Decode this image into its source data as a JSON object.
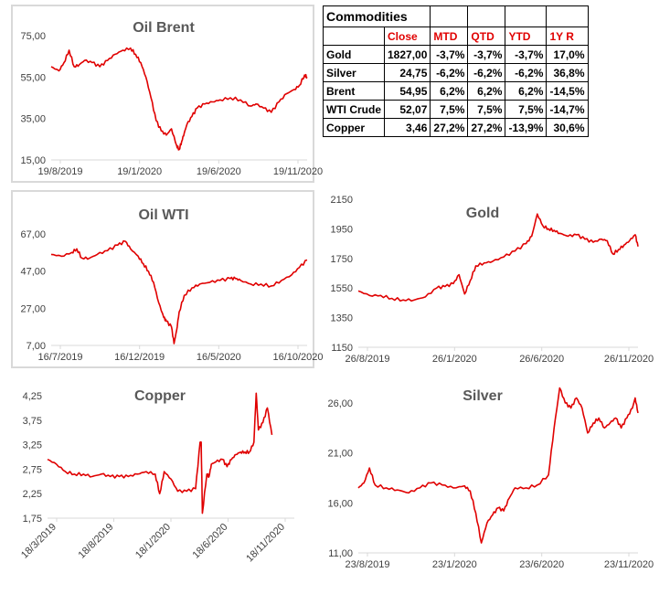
{
  "table": {
    "title": "Commodities",
    "columns": [
      "",
      "Close",
      "MTD",
      "QTD",
      "YTD",
      "1Y R"
    ],
    "rows": [
      [
        "Gold",
        "1827,00",
        "-3,7%",
        "-3,7%",
        "-3,7%",
        "17,0%"
      ],
      [
        "Silver",
        "24,75",
        "-6,2%",
        "-6,2%",
        "-6,2%",
        "36,8%"
      ],
      [
        "Brent",
        "54,95",
        "6,2%",
        "6,2%",
        "6,2%",
        "-14,5%"
      ],
      [
        "WTI Crude",
        "52,07",
        "7,5%",
        "7,5%",
        "7,5%",
        "-14,7%"
      ],
      [
        "Copper",
        "3,46",
        "27,2%",
        "27,2%",
        "-13,9%",
        "30,6%"
      ]
    ]
  },
  "colors": {
    "series": "#e00000",
    "border": "#d9d9d9",
    "header_text": "#e00000"
  },
  "chart_data": [
    {
      "id": "brent",
      "type": "line",
      "title": "Oil Brent",
      "yticks": [
        "75,00",
        "55,00",
        "35,00",
        "15,00"
      ],
      "ylim": [
        15,
        75
      ],
      "xticks": [
        "19/8/2019",
        "19/1/2020",
        "19/6/2020",
        "19/11/2020"
      ],
      "xlim": [
        0,
        1
      ],
      "x": [
        0,
        0.03,
        0.05,
        0.07,
        0.09,
        0.11,
        0.13,
        0.16,
        0.19,
        0.22,
        0.25,
        0.28,
        0.31,
        0.33,
        0.35,
        0.37,
        0.39,
        0.41,
        0.43,
        0.45,
        0.47,
        0.49,
        0.5,
        0.51,
        0.52,
        0.53,
        0.55,
        0.57,
        0.6,
        0.63,
        0.66,
        0.7,
        0.74,
        0.78,
        0.8,
        0.83,
        0.86,
        0.89,
        0.92,
        0.95,
        0.97,
        0.99,
        1
      ],
      "y": [
        60,
        58,
        62,
        68,
        60,
        61,
        63,
        62,
        60,
        63,
        66,
        68,
        69,
        66,
        62,
        55,
        45,
        34,
        29,
        27,
        30,
        22,
        20,
        24,
        28,
        32,
        36,
        40,
        42,
        43,
        44,
        45,
        44,
        41,
        42,
        40,
        38,
        43,
        47,
        49,
        51,
        56,
        55
      ]
    },
    {
      "id": "wti",
      "type": "line",
      "title": "Oil WTI",
      "yticks": [
        "67,00",
        "47,00",
        "27,00",
        "7,00"
      ],
      "ylim": [
        7,
        67
      ],
      "xticks": [
        "16/7/2019",
        "16/12/2019",
        "16/5/2020",
        "16/10/2020"
      ],
      "xlim": [
        0,
        1
      ],
      "x": [
        0,
        0.04,
        0.08,
        0.1,
        0.12,
        0.15,
        0.18,
        0.22,
        0.26,
        0.29,
        0.31,
        0.34,
        0.36,
        0.38,
        0.4,
        0.42,
        0.44,
        0.45,
        0.47,
        0.48,
        0.49,
        0.5,
        0.52,
        0.55,
        0.58,
        0.62,
        0.66,
        0.7,
        0.72,
        0.74,
        0.78,
        0.82,
        0.86,
        0.9,
        0.94,
        0.97,
        1
      ],
      "y": [
        56,
        55,
        57,
        59,
        54,
        54,
        56,
        58,
        61,
        63,
        59,
        55,
        51,
        47,
        41,
        30,
        22,
        20,
        17,
        8,
        15,
        25,
        34,
        38,
        40,
        41,
        42,
        43,
        43,
        42,
        40,
        40,
        39,
        42,
        45,
        49,
        53
      ]
    },
    {
      "id": "gold",
      "type": "line",
      "title": "Gold",
      "yticks": [
        "2150",
        "1950",
        "1750",
        "1550",
        "1350",
        "1150"
      ],
      "ylim": [
        1150,
        2150
      ],
      "xticks": [
        "26/8/2019",
        "26/1/2020",
        "26/6/2020",
        "26/11/2020"
      ],
      "xlim": [
        0,
        1
      ],
      "x": [
        0,
        0.04,
        0.08,
        0.12,
        0.16,
        0.2,
        0.24,
        0.28,
        0.31,
        0.34,
        0.36,
        0.38,
        0.4,
        0.42,
        0.45,
        0.48,
        0.52,
        0.56,
        0.6,
        0.62,
        0.64,
        0.66,
        0.68,
        0.7,
        0.72,
        0.75,
        0.78,
        0.81,
        0.84,
        0.87,
        0.89,
        0.91,
        0.93,
        0.95,
        0.97,
        0.99,
        1
      ],
      "y": [
        1530,
        1500,
        1500,
        1480,
        1470,
        1470,
        1490,
        1550,
        1560,
        1580,
        1640,
        1510,
        1600,
        1700,
        1720,
        1730,
        1760,
        1800,
        1850,
        1900,
        2050,
        1970,
        1950,
        1940,
        1920,
        1900,
        1910,
        1880,
        1860,
        1880,
        1870,
        1780,
        1810,
        1840,
        1870,
        1910,
        1830
      ]
    },
    {
      "id": "copper",
      "type": "line",
      "title": "Copper",
      "yticks": [
        "4,25",
        "3,75",
        "3,25",
        "2,75",
        "2,25",
        "1,75"
      ],
      "ylim": [
        1.75,
        4.25
      ],
      "xticks": [
        "18/3/2019",
        "18/8/2019",
        "18/1/2020",
        "18/6/2020",
        "18/11/2020"
      ],
      "xlim": [
        0,
        1.1
      ],
      "x": [
        0,
        0.04,
        0.08,
        0.12,
        0.16,
        0.2,
        0.24,
        0.28,
        0.32,
        0.36,
        0.4,
        0.44,
        0.48,
        0.5,
        0.52,
        0.55,
        0.58,
        0.62,
        0.66,
        0.68,
        0.685,
        0.69,
        0.71,
        0.72,
        0.73,
        0.75,
        0.78,
        0.8,
        0.82,
        0.84,
        0.86,
        0.88,
        0.9,
        0.92,
        0.93,
        0.94,
        0.96,
        0.98,
        1.0
      ],
      "y": [
        2.95,
        2.85,
        2.7,
        2.65,
        2.65,
        2.6,
        2.65,
        2.6,
        2.6,
        2.6,
        2.65,
        2.7,
        2.65,
        2.25,
        2.7,
        2.55,
        2.3,
        2.3,
        2.35,
        3.3,
        3.3,
        1.85,
        2.65,
        2.6,
        2.85,
        2.9,
        2.95,
        2.8,
        2.95,
        3.05,
        3.1,
        3.1,
        3.1,
        3.3,
        4.3,
        3.55,
        3.7,
        4.0,
        3.45
      ]
    },
    {
      "id": "silver",
      "type": "line",
      "title": "Silver",
      "yticks": [
        "26,00",
        "21,00",
        "16,00",
        "11,00"
      ],
      "ylim": [
        11,
        26
      ],
      "xticks": [
        "23/8/2019",
        "23/1/2020",
        "23/6/2020",
        "23/11/2020"
      ],
      "xlim": [
        0,
        1
      ],
      "x": [
        0,
        0.02,
        0.04,
        0.06,
        0.1,
        0.14,
        0.18,
        0.22,
        0.26,
        0.3,
        0.34,
        0.38,
        0.4,
        0.42,
        0.44,
        0.46,
        0.48,
        0.5,
        0.52,
        0.54,
        0.56,
        0.6,
        0.64,
        0.68,
        0.7,
        0.72,
        0.74,
        0.76,
        0.78,
        0.8,
        0.82,
        0.84,
        0.86,
        0.88,
        0.9,
        0.92,
        0.94,
        0.96,
        0.98,
        0.99,
        1
      ],
      "y": [
        17.5,
        18,
        19.5,
        17.8,
        17.5,
        17.3,
        17,
        17.5,
        18,
        17.8,
        17.5,
        17.7,
        17.2,
        15,
        12,
        14,
        14.8,
        15.5,
        15.2,
        16.5,
        17.5,
        17.5,
        17.8,
        18.8,
        23.5,
        27.5,
        26,
        25.5,
        26.5,
        25.5,
        23,
        24,
        24.5,
        23.5,
        24,
        24.5,
        23.5,
        24.5,
        25.5,
        26.5,
        25
      ]
    }
  ]
}
